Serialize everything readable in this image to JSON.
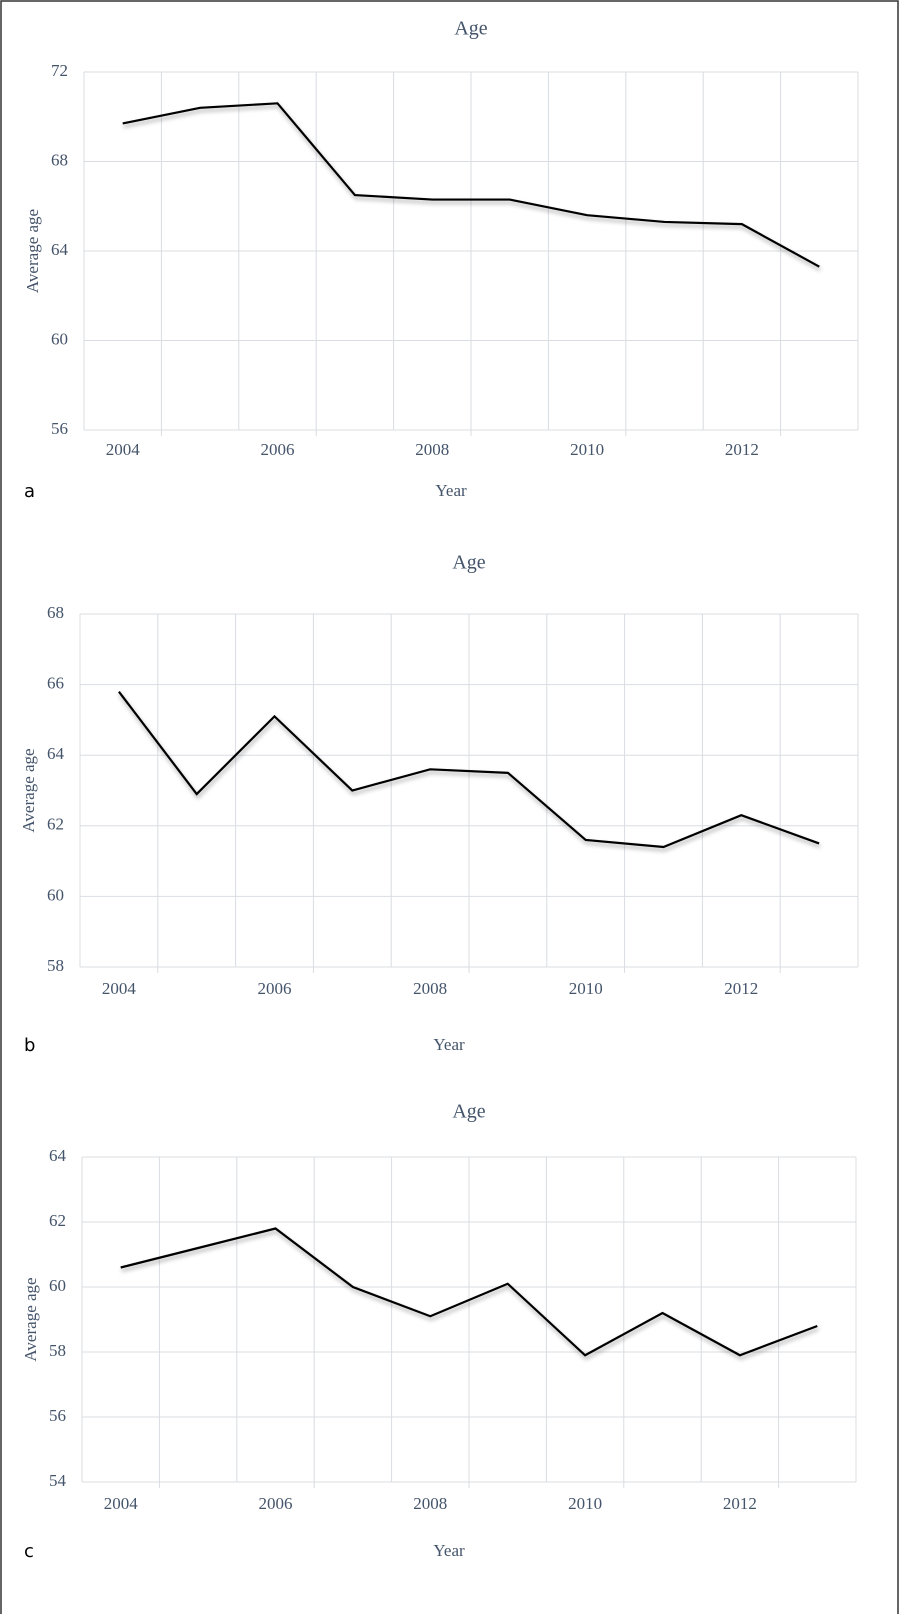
{
  "chart_data": [
    {
      "type": "line",
      "panel_label": "a",
      "title": "Age",
      "x_label": "Year",
      "y_label": "Average age",
      "categories": [
        "2004",
        null,
        "2006",
        null,
        "2008",
        null,
        "2010",
        null,
        "2012",
        null
      ],
      "values": [
        69.7,
        70.4,
        70.6,
        66.5,
        66.3,
        66.3,
        65.6,
        65.3,
        65.2,
        63.3
      ],
      "color": "#000000",
      "ylim": [
        56,
        72
      ],
      "yticks": [
        56,
        60,
        64,
        68,
        72
      ],
      "grid": true
    },
    {
      "type": "line",
      "panel_label": "b",
      "title": "Age",
      "x_label": "Year",
      "y_label": "Average age",
      "categories": [
        "2004",
        null,
        "2006",
        null,
        "2008",
        null,
        "2010",
        null,
        "2012",
        null
      ],
      "values": [
        65.8,
        62.9,
        65.1,
        63.0,
        63.6,
        63.5,
        61.6,
        61.4,
        62.3,
        61.5
      ],
      "color": "#000000",
      "ylim": [
        58,
        68
      ],
      "yticks": [
        58,
        60,
        62,
        64,
        66,
        68
      ],
      "grid": true
    },
    {
      "type": "line",
      "panel_label": "c",
      "title": "Age",
      "x_label": "Year",
      "y_label": "Average age",
      "categories": [
        "2004",
        null,
        "2006",
        null,
        "2008",
        null,
        "2010",
        null,
        "2012",
        null
      ],
      "values": [
        60.6,
        61.2,
        61.8,
        60.0,
        59.1,
        60.1,
        57.9,
        59.2,
        57.9,
        58.8
      ],
      "color": "#000000",
      "ylim": [
        54,
        64
      ],
      "yticks": [
        54,
        56,
        58,
        60,
        62,
        64
      ],
      "grid": true
    }
  ]
}
